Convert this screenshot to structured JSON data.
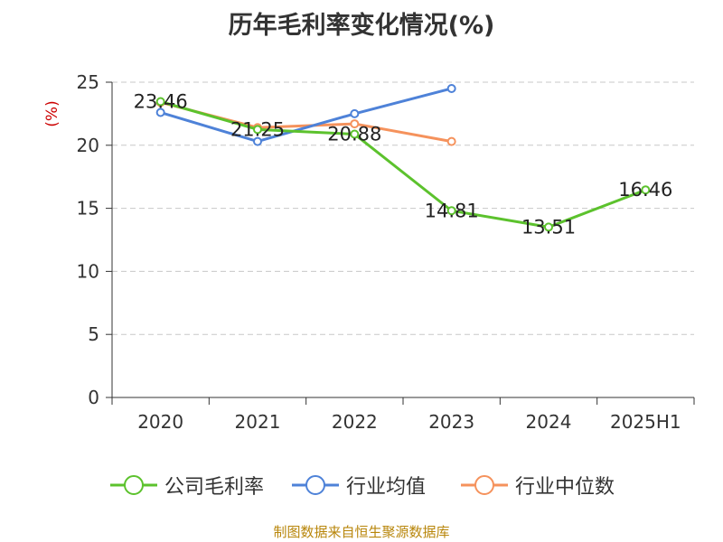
{
  "chart_data": {
    "type": "line",
    "title": "历年毛利率变化情况(%)",
    "ylabel": "(%)",
    "xlabel": "",
    "categories": [
      "2020",
      "2021",
      "2022",
      "2023",
      "2024",
      "2025H1"
    ],
    "ylim": [
      0,
      25
    ],
    "yticks": [
      0,
      5,
      10,
      15,
      20,
      25
    ],
    "grid": true,
    "legend_position": "bottom",
    "series": [
      {
        "name": "公司毛利率",
        "color": "#5cc22d",
        "values": [
          23.46,
          21.25,
          20.88,
          14.81,
          13.51,
          16.46
        ],
        "show_labels": true
      },
      {
        "name": "行业均值",
        "color": "#4e82d8",
        "values": [
          22.6,
          20.3,
          22.5,
          24.5,
          null,
          null
        ],
        "show_labels": false
      },
      {
        "name": "行业中位数",
        "color": "#f5925c",
        "values": [
          23.4,
          21.4,
          21.7,
          20.3,
          null,
          null
        ],
        "show_labels": false
      }
    ]
  },
  "source": "制图数据来自恒生聚源数据库"
}
